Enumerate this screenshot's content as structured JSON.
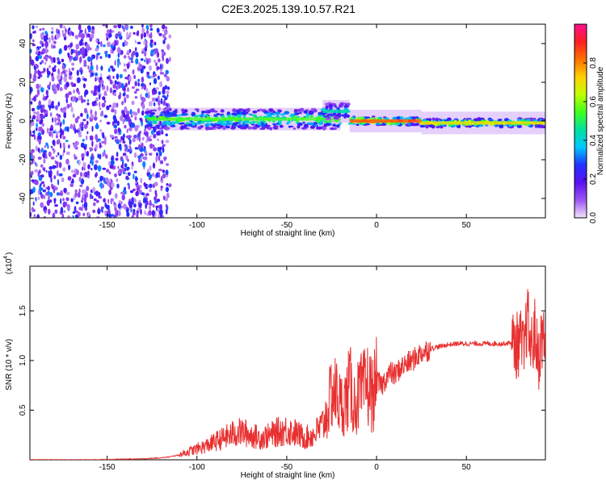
{
  "figure": {
    "title": "C2E3.2025.139.10.57.R21"
  },
  "chart_data": [
    {
      "type": "heatmap",
      "title": "C2E3.2025.139.10.57.R21",
      "xlabel": "Height of straight line (km)",
      "ylabel": "Frequency (Hz)",
      "xlim": [
        -193,
        94
      ],
      "ylim": [
        -50,
        50
      ],
      "x_ticks": [
        -150,
        -100,
        -50,
        0,
        50
      ],
      "x_tick_labels": [
        "-150",
        "-100",
        "-50",
        "0",
        "50"
      ],
      "y_ticks": [
        -40,
        -20,
        0,
        20,
        40
      ],
      "y_tick_labels": [
        "-40",
        "-20",
        "0",
        "20",
        "40"
      ],
      "colorbar": {
        "label": "Normalized spectral amplitude",
        "range": [
          0,
          1
        ],
        "ticks": [
          0.0,
          0.2,
          0.4,
          0.6,
          0.8
        ],
        "tick_labels": [
          "0.0",
          "0.2",
          "0.4",
          "0.6",
          "0.8"
        ],
        "colors": [
          "#f2e6fa",
          "#9d55f2",
          "#5a10f0",
          "#2030ff",
          "#00c8ff",
          "#00e0a0",
          "#40ff20",
          "#c0ff00",
          "#ffd000",
          "#ff7000",
          "#ff1e20",
          "#ff1090"
        ]
      },
      "regions": [
        {
          "x_range": [
            -193,
            -115
          ],
          "description_value": "broadband noise",
          "amplitude": 0.15,
          "freq_center": 0,
          "freq_halfwidth": 50
        },
        {
          "x_range": [
            -128,
            -20
          ],
          "amplitude": 0.45,
          "freq_center": 1,
          "freq_halfwidth": 5
        },
        {
          "x_range": [
            -30,
            -15
          ],
          "amplitude": 0.35,
          "freq_center": 5,
          "freq_halfwidth": 4
        },
        {
          "x_range": [
            -15,
            25
          ],
          "amplitude": 0.75,
          "freq_center": 0,
          "freq_halfwidth": 2
        },
        {
          "x_range": [
            25,
            94
          ],
          "amplitude": 0.6,
          "freq_center": -1,
          "freq_halfwidth": 2
        }
      ],
      "grid": false
    },
    {
      "type": "line",
      "xlabel": "Height of straight line (km)",
      "ylabel": "SNR (10 * v/v)",
      "y_exponent_label": "(x10",
      "y_exponent": "4",
      "xlim": [
        -193,
        94
      ],
      "ylim": [
        0,
        1.95
      ],
      "x_ticks": [
        -150,
        -100,
        -50,
        0,
        50
      ],
      "x_tick_labels": [
        "-150",
        "-100",
        "-50",
        "0",
        "50"
      ],
      "y_ticks": [
        0.5,
        1.0,
        1.5
      ],
      "y_tick_labels": [
        "0.5",
        "1.0",
        "1.5"
      ],
      "series": [
        {
          "color": "#e83030",
          "x": [
            -193,
            -160,
            -130,
            -120,
            -115,
            -110,
            -105,
            -100,
            -95,
            -90,
            -85,
            -80,
            -75,
            -70,
            -65,
            -60,
            -55,
            -50,
            -45,
            -40,
            -35,
            -30,
            -27,
            -25,
            -22,
            -20,
            -17,
            -15,
            -12,
            -10,
            -7,
            -5,
            -2,
            0,
            3,
            5,
            8,
            10,
            13,
            15,
            18,
            20,
            23,
            25,
            28,
            30,
            35,
            40,
            45,
            50,
            55,
            60,
            65,
            70,
            75,
            78,
            80,
            82,
            84,
            86,
            88,
            90,
            92,
            94
          ],
          "y": [
            0.0,
            0.0,
            0.01,
            0.02,
            0.03,
            0.05,
            0.08,
            0.11,
            0.14,
            0.18,
            0.22,
            0.26,
            0.28,
            0.25,
            0.22,
            0.24,
            0.28,
            0.3,
            0.27,
            0.22,
            0.25,
            0.35,
            0.5,
            0.7,
            0.65,
            0.55,
            0.6,
            0.75,
            0.55,
            0.65,
            0.7,
            0.75,
            0.65,
            0.78,
            0.75,
            0.82,
            0.88,
            0.85,
            0.92,
            0.95,
            0.98,
            1.0,
            1.05,
            1.08,
            1.1,
            1.12,
            1.14,
            1.16,
            1.17,
            1.17,
            1.17,
            1.17,
            1.17,
            1.17,
            1.18,
            1.15,
            1.2,
            1.05,
            1.45,
            1.1,
            1.3,
            1.0,
            1.25,
            1.15
          ]
        }
      ],
      "grid": false
    }
  ]
}
